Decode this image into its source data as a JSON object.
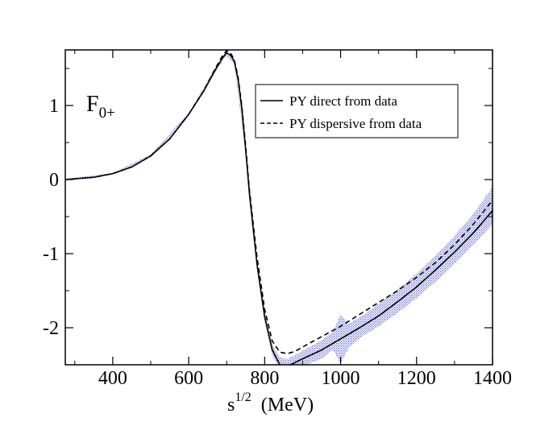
{
  "chart_data": {
    "type": "line",
    "title": "",
    "panel_label": "F",
    "panel_label_sub": "0+",
    "xlabel": "s",
    "xlabel_sup": "1/2",
    "xlabel_unit": "(MeV)",
    "ylabel": "",
    "xlim": [
      275,
      1400
    ],
    "ylim": [
      -2.5,
      1.75
    ],
    "x_ticks": [
      400,
      600,
      800,
      1000,
      1200,
      1400
    ],
    "y_ticks": [
      1,
      0,
      -1,
      -2
    ],
    "legend_position": "top-right",
    "grid": false,
    "band_color": "#7b7bd6",
    "series": [
      {
        "name": "PY direct from data",
        "style": "solid",
        "color": "#000000",
        "x": [
          275,
          350,
          400,
          450,
          500,
          550,
          600,
          640,
          670,
          690,
          700,
          710,
          720,
          730,
          740,
          750,
          760,
          780,
          800,
          820,
          840,
          860,
          880,
          900,
          950,
          1000,
          1050,
          1100,
          1150,
          1200,
          1250,
          1300,
          1350,
          1400
        ],
        "y": [
          0.0,
          0.03,
          0.08,
          0.17,
          0.32,
          0.55,
          0.88,
          1.2,
          1.48,
          1.65,
          1.71,
          1.68,
          1.6,
          1.35,
          0.95,
          0.4,
          -0.2,
          -1.15,
          -1.85,
          -2.3,
          -2.5,
          -2.52,
          -2.47,
          -2.42,
          -2.3,
          -2.15,
          -2.0,
          -1.84,
          -1.65,
          -1.45,
          -1.22,
          -0.98,
          -0.72,
          -0.42
        ]
      },
      {
        "name": "PY dispersive from data",
        "style": "dashed",
        "color": "#000000",
        "x": [
          275,
          350,
          400,
          450,
          500,
          550,
          600,
          640,
          670,
          690,
          700,
          710,
          720,
          730,
          740,
          750,
          760,
          780,
          800,
          820,
          840,
          860,
          880,
          900,
          950,
          1000,
          1050,
          1100,
          1150,
          1200,
          1250,
          1300,
          1350,
          1400
        ],
        "y": [
          0.0,
          0.03,
          0.08,
          0.17,
          0.32,
          0.55,
          0.88,
          1.2,
          1.5,
          1.68,
          1.74,
          1.71,
          1.62,
          1.38,
          0.98,
          0.45,
          -0.15,
          -1.05,
          -1.75,
          -2.18,
          -2.33,
          -2.35,
          -2.32,
          -2.26,
          -2.12,
          -1.98,
          -1.82,
          -1.66,
          -1.5,
          -1.32,
          -1.12,
          -0.88,
          -0.6,
          -0.28
        ]
      }
    ],
    "band": {
      "x": [
        275,
        400,
        500,
        600,
        670,
        700,
        720,
        750,
        780,
        800,
        820,
        840,
        860,
        880,
        900,
        950,
        980,
        1000,
        1020,
        1050,
        1100,
        1150,
        1200,
        1250,
        1300,
        1350,
        1400
      ],
      "upper": [
        0.01,
        0.09,
        0.34,
        0.9,
        1.51,
        1.74,
        1.64,
        0.46,
        -1.08,
        -1.78,
        -2.22,
        -2.4,
        -2.42,
        -2.37,
        -2.31,
        -2.17,
        -2.05,
        -1.82,
        -1.95,
        -1.86,
        -1.68,
        -1.48,
        -1.27,
        -1.02,
        -0.76,
        -0.46,
        -0.1
      ],
      "lower": [
        -0.01,
        0.07,
        0.3,
        0.86,
        1.45,
        1.68,
        1.56,
        0.34,
        -1.22,
        -1.92,
        -2.38,
        -2.56,
        -2.56,
        -2.55,
        -2.52,
        -2.42,
        -2.3,
        -2.48,
        -2.28,
        -2.14,
        -1.98,
        -1.8,
        -1.6,
        -1.38,
        -1.14,
        -0.88,
        -0.6
      ]
    }
  }
}
